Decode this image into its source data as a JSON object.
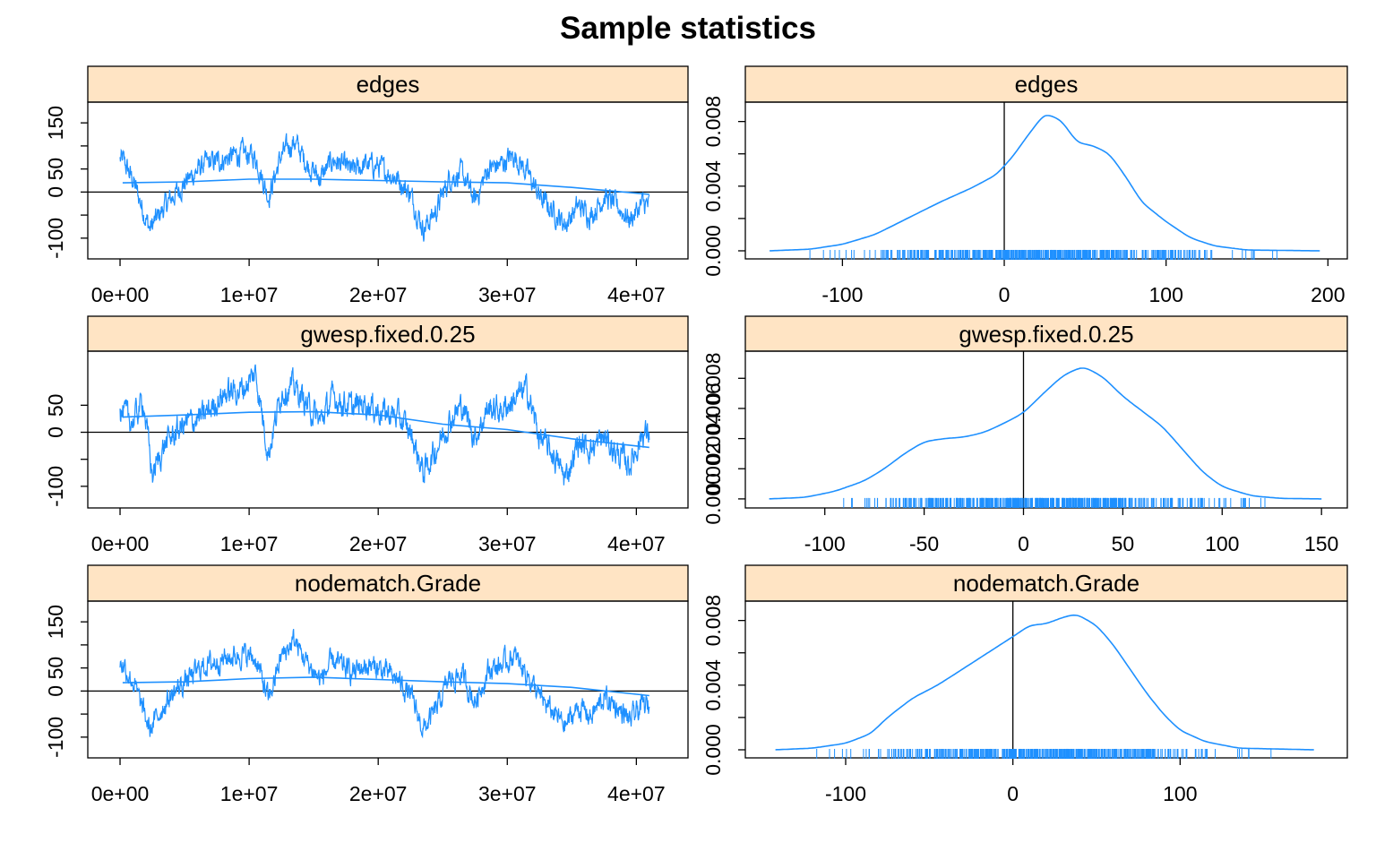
{
  "title": "Sample statistics",
  "colors": {
    "line": "#1e90ff",
    "strip": "#ffe4c4",
    "axis": "#000000"
  },
  "chart_data": [
    {
      "type": "line",
      "panel": "trace",
      "strip": "edges",
      "xlim": [
        -2500000,
        44000000
      ],
      "ylim": [
        -145,
        195
      ],
      "x_ticks": [
        0,
        10000000,
        20000000,
        30000000,
        40000000
      ],
      "x_tick_labels": [
        "0e+00",
        "1e+07",
        "2e+07",
        "3e+07",
        "4e+07"
      ],
      "y_ticks": [
        -100,
        -50,
        0,
        50,
        100,
        150
      ],
      "y_tick_labels": [
        "-100",
        "",
        "0",
        "50",
        "",
        "150"
      ],
      "hline": 0,
      "series_range": [
        0,
        41000000
      ],
      "key_points": [
        [
          200000,
          70
        ],
        [
          1000000,
          25
        ],
        [
          2300000,
          -80
        ],
        [
          3500000,
          -30
        ],
        [
          5000000,
          20
        ],
        [
          6500000,
          60
        ],
        [
          8000000,
          70
        ],
        [
          9500000,
          85
        ],
        [
          10500000,
          75
        ],
        [
          11500000,
          -10
        ],
        [
          12500000,
          80
        ],
        [
          13500000,
          110
        ],
        [
          14500000,
          60
        ],
        [
          15500000,
          30
        ],
        [
          16500000,
          70
        ],
        [
          18000000,
          45
        ],
        [
          19000000,
          60
        ],
        [
          20000000,
          55
        ],
        [
          21500000,
          30
        ],
        [
          22500000,
          -5
        ],
        [
          23500000,
          -80
        ],
        [
          24500000,
          -40
        ],
        [
          25500000,
          30
        ],
        [
          26500000,
          40
        ],
        [
          27500000,
          -20
        ],
        [
          28500000,
          50
        ],
        [
          29500000,
          60
        ],
        [
          30500000,
          80
        ],
        [
          31500000,
          45
        ],
        [
          32500000,
          -10
        ],
        [
          33500000,
          -40
        ],
        [
          34500000,
          -70
        ],
        [
          35500000,
          -30
        ],
        [
          36500000,
          -50
        ],
        [
          37500000,
          -10
        ],
        [
          38500000,
          -30
        ],
        [
          39500000,
          -60
        ],
        [
          40500000,
          -25
        ],
        [
          41000000,
          -30
        ]
      ],
      "smooth": [
        [
          200000,
          20
        ],
        [
          5000000,
          22
        ],
        [
          10000000,
          28
        ],
        [
          15000000,
          28
        ],
        [
          20000000,
          25
        ],
        [
          25000000,
          22
        ],
        [
          30000000,
          20
        ],
        [
          35000000,
          10
        ],
        [
          41000000,
          -5
        ]
      ]
    },
    {
      "type": "line",
      "panel": "density",
      "strip": "edges",
      "xlim": [
        -160,
        212
      ],
      "ylim": [
        -0.0005,
        0.0092
      ],
      "x_ticks": [
        -100,
        0,
        100,
        200
      ],
      "x_tick_labels": [
        "-100",
        "0",
        "100",
        "200"
      ],
      "y_ticks": [
        0,
        0.002,
        0.004,
        0.006,
        0.008
      ],
      "y_tick_labels": [
        "0.000",
        "",
        "0.004",
        "",
        "0.008"
      ],
      "vline": 0,
      "curve": [
        [
          -145,
          0
        ],
        [
          -120,
          0.0001
        ],
        [
          -100,
          0.0004
        ],
        [
          -80,
          0.001
        ],
        [
          -60,
          0.002
        ],
        [
          -40,
          0.003
        ],
        [
          -20,
          0.0039
        ],
        [
          -5,
          0.0047
        ],
        [
          5,
          0.0058
        ],
        [
          15,
          0.0072
        ],
        [
          25,
          0.0085
        ],
        [
          35,
          0.0081
        ],
        [
          45,
          0.0067
        ],
        [
          55,
          0.0065
        ],
        [
          65,
          0.006
        ],
        [
          75,
          0.0046
        ],
        [
          85,
          0.003
        ],
        [
          100,
          0.0018
        ],
        [
          115,
          0.0008
        ],
        [
          130,
          0.0003
        ],
        [
          150,
          5e-05
        ],
        [
          195,
          0
        ]
      ],
      "rug_range": [
        -125,
        170
      ]
    },
    {
      "type": "line",
      "panel": "trace",
      "strip": "gwesp.fixed.0.25",
      "xlim": [
        -2500000,
        44000000
      ],
      "ylim": [
        -140,
        150
      ],
      "x_ticks": [
        0,
        10000000,
        20000000,
        30000000,
        40000000
      ],
      "x_tick_labels": [
        "0e+00",
        "1e+07",
        "2e+07",
        "3e+07",
        "4e+07"
      ],
      "y_ticks": [
        -100,
        -50,
        0,
        50
      ],
      "y_tick_labels": [
        "-100",
        "",
        "0",
        "50"
      ],
      "hline": 0,
      "series_range": [
        0,
        41000000
      ],
      "key_points": [
        [
          200000,
          35
        ],
        [
          1000000,
          20
        ],
        [
          1800000,
          60
        ],
        [
          2500000,
          -80
        ],
        [
          3500000,
          -20
        ],
        [
          5000000,
          15
        ],
        [
          6500000,
          30
        ],
        [
          8000000,
          70
        ],
        [
          9500000,
          80
        ],
        [
          10500000,
          110
        ],
        [
          11500000,
          -40
        ],
        [
          12500000,
          75
        ],
        [
          13500000,
          85
        ],
        [
          14500000,
          50
        ],
        [
          15500000,
          20
        ],
        [
          16500000,
          65
        ],
        [
          18000000,
          45
        ],
        [
          19000000,
          55
        ],
        [
          20000000,
          40
        ],
        [
          21500000,
          30
        ],
        [
          22500000,
          0
        ],
        [
          23500000,
          -75
        ],
        [
          24500000,
          -30
        ],
        [
          25500000,
          20
        ],
        [
          26500000,
          50
        ],
        [
          27500000,
          -10
        ],
        [
          28500000,
          45
        ],
        [
          29500000,
          40
        ],
        [
          30500000,
          60
        ],
        [
          31500000,
          80
        ],
        [
          32500000,
          -10
        ],
        [
          33500000,
          -40
        ],
        [
          34500000,
          -85
        ],
        [
          35500000,
          -20
        ],
        [
          36500000,
          -30
        ],
        [
          37500000,
          -10
        ],
        [
          38500000,
          -40
        ],
        [
          39500000,
          -60
        ],
        [
          40500000,
          0
        ],
        [
          41000000,
          -5
        ]
      ],
      "smooth": [
        [
          200000,
          28
        ],
        [
          5000000,
          32
        ],
        [
          10000000,
          37
        ],
        [
          15000000,
          38
        ],
        [
          20000000,
          32
        ],
        [
          25000000,
          15
        ],
        [
          30000000,
          5
        ],
        [
          35000000,
          -12
        ],
        [
          41000000,
          -28
        ]
      ]
    },
    {
      "type": "line",
      "panel": "density",
      "strip": "gwesp.fixed.0.25",
      "xlim": [
        -140,
        163
      ],
      "ylim": [
        -0.0006,
        0.0098
      ],
      "x_ticks": [
        -100,
        -50,
        0,
        50,
        100,
        150
      ],
      "x_tick_labels": [
        "-100",
        "-50",
        "0",
        "50",
        "100",
        "150"
      ],
      "y_ticks": [
        0,
        0.002,
        0.004,
        0.006,
        0.008
      ],
      "y_tick_labels": [
        "0.000",
        "0.002",
        "0.004",
        "0.006",
        "0.008"
      ],
      "vline": 0,
      "curve": [
        [
          -128,
          0
        ],
        [
          -110,
          0.0001
        ],
        [
          -95,
          0.0005
        ],
        [
          -80,
          0.0012
        ],
        [
          -70,
          0.002
        ],
        [
          -60,
          0.003
        ],
        [
          -50,
          0.0038
        ],
        [
          -40,
          0.004
        ],
        [
          -30,
          0.0041
        ],
        [
          -20,
          0.0044
        ],
        [
          -10,
          0.005
        ],
        [
          0,
          0.0057
        ],
        [
          10,
          0.007
        ],
        [
          20,
          0.0082
        ],
        [
          30,
          0.0088
        ],
        [
          40,
          0.0081
        ],
        [
          50,
          0.0068
        ],
        [
          60,
          0.0058
        ],
        [
          70,
          0.0048
        ],
        [
          80,
          0.0033
        ],
        [
          90,
          0.0018
        ],
        [
          100,
          0.0008
        ],
        [
          115,
          0.0002
        ],
        [
          130,
          3e-05
        ],
        [
          150,
          0
        ]
      ],
      "rug_range": [
        -105,
        128
      ]
    },
    {
      "type": "line",
      "panel": "trace",
      "strip": "nodematch.Grade",
      "xlim": [
        -2500000,
        44000000
      ],
      "ylim": [
        -145,
        195
      ],
      "x_ticks": [
        0,
        10000000,
        20000000,
        30000000,
        40000000
      ],
      "x_tick_labels": [
        "0e+00",
        "1e+07",
        "2e+07",
        "3e+07",
        "4e+07"
      ],
      "y_ticks": [
        -100,
        -50,
        0,
        50,
        100,
        150
      ],
      "y_tick_labels": [
        "-100",
        "",
        "0",
        "50",
        "",
        "150"
      ],
      "hline": 0,
      "series_range": [
        0,
        41000000
      ],
      "key_points": [
        [
          200000,
          60
        ],
        [
          1000000,
          20
        ],
        [
          2300000,
          -85
        ],
        [
          3500000,
          -25
        ],
        [
          5000000,
          20
        ],
        [
          6500000,
          55
        ],
        [
          8000000,
          70
        ],
        [
          9500000,
          80
        ],
        [
          10500000,
          70
        ],
        [
          11500000,
          -20
        ],
        [
          12500000,
          75
        ],
        [
          13500000,
          110
        ],
        [
          14500000,
          60
        ],
        [
          15500000,
          25
        ],
        [
          16500000,
          65
        ],
        [
          18000000,
          40
        ],
        [
          19000000,
          55
        ],
        [
          20000000,
          50
        ],
        [
          21500000,
          25
        ],
        [
          22500000,
          -10
        ],
        [
          23500000,
          -85
        ],
        [
          24500000,
          -40
        ],
        [
          25500000,
          25
        ],
        [
          26500000,
          35
        ],
        [
          27500000,
          -25
        ],
        [
          28500000,
          45
        ],
        [
          29500000,
          55
        ],
        [
          30500000,
          75
        ],
        [
          31500000,
          40
        ],
        [
          32500000,
          -15
        ],
        [
          33500000,
          -45
        ],
        [
          34500000,
          -75
        ],
        [
          35500000,
          -35
        ],
        [
          36500000,
          -55
        ],
        [
          37500000,
          -15
        ],
        [
          38500000,
          -35
        ],
        [
          39500000,
          -65
        ],
        [
          40500000,
          -30
        ],
        [
          41000000,
          -35
        ]
      ],
      "smooth": [
        [
          200000,
          18
        ],
        [
          5000000,
          20
        ],
        [
          10000000,
          27
        ],
        [
          15000000,
          30
        ],
        [
          20000000,
          25
        ],
        [
          25000000,
          20
        ],
        [
          30000000,
          16
        ],
        [
          35000000,
          8
        ],
        [
          41000000,
          -10
        ]
      ]
    },
    {
      "type": "line",
      "panel": "density",
      "strip": "nodematch.Grade",
      "xlim": [
        -160,
        200
      ],
      "ylim": [
        -0.0005,
        0.0092
      ],
      "x_ticks": [
        -100,
        0,
        100
      ],
      "x_tick_labels": [
        "-100",
        "0",
        "100"
      ],
      "y_ticks": [
        0,
        0.002,
        0.004,
        0.006,
        0.008
      ],
      "y_tick_labels": [
        "0.000",
        "",
        "0.004",
        "",
        "0.008"
      ],
      "vline": 0,
      "curve": [
        [
          -142,
          0
        ],
        [
          -120,
          0.0001
        ],
        [
          -100,
          0.0004
        ],
        [
          -85,
          0.001
        ],
        [
          -75,
          0.002
        ],
        [
          -60,
          0.0032
        ],
        [
          -45,
          0.004
        ],
        [
          -30,
          0.005
        ],
        [
          -15,
          0.006
        ],
        [
          0,
          0.007
        ],
        [
          10,
          0.0077
        ],
        [
          20,
          0.0078
        ],
        [
          30,
          0.0082
        ],
        [
          38,
          0.0084
        ],
        [
          50,
          0.0077
        ],
        [
          60,
          0.0065
        ],
        [
          70,
          0.005
        ],
        [
          80,
          0.0035
        ],
        [
          90,
          0.0022
        ],
        [
          100,
          0.0012
        ],
        [
          115,
          0.0005
        ],
        [
          135,
          0.0001
        ],
        [
          180,
          0
        ]
      ],
      "rug_range": [
        -120,
        160
      ]
    }
  ]
}
